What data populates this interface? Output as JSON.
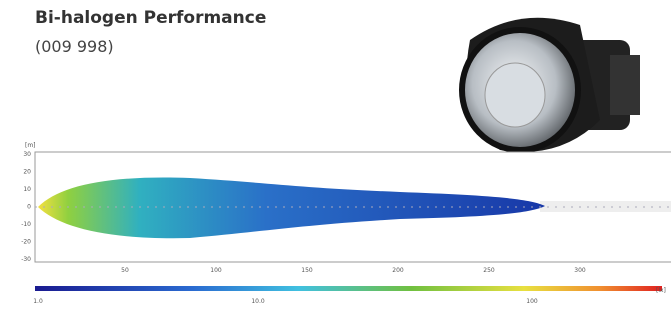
{
  "header": {
    "title": "Bi-halogen Performance",
    "subtitle": "(009 998)"
  },
  "plot": {
    "y_unit": "[m]",
    "y_labels": [
      "30",
      "20",
      "10",
      "0",
      "-10",
      "-20",
      "-30"
    ],
    "x_labels": [
      "50",
      "100",
      "150",
      "200",
      "250",
      "300"
    ]
  },
  "scale": {
    "labels": [
      "1.0",
      "10.0",
      "100"
    ],
    "unit": "[lx]"
  }
}
